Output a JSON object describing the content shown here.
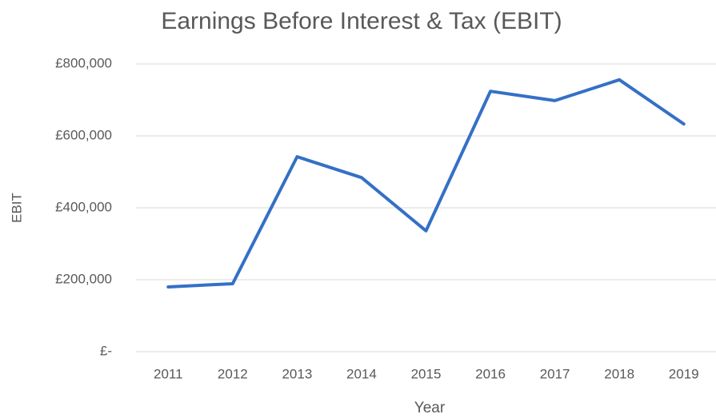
{
  "chart_data": {
    "type": "line",
    "title": "Earnings Before Interest & Tax (EBIT)",
    "x_label": "Year",
    "y_label": "EBIT",
    "categories": [
      "2011",
      "2012",
      "2013",
      "2014",
      "2015",
      "2016",
      "2017",
      "2018",
      "2019"
    ],
    "series": [
      {
        "name": "EBIT",
        "color": "#3470c6",
        "values": [
          180000,
          189000,
          542000,
          484000,
          336000,
          724000,
          698000,
          756000,
          633000
        ]
      }
    ],
    "ylim": [
      0,
      800000
    ],
    "yticks": [
      {
        "value": 0,
        "label": "£-"
      },
      {
        "value": 200000,
        "label": "£200,000"
      },
      {
        "value": 400000,
        "label": "£400,000"
      },
      {
        "value": 600000,
        "label": "£600,000"
      },
      {
        "value": 800000,
        "label": "£800,000"
      }
    ],
    "grid": true
  }
}
